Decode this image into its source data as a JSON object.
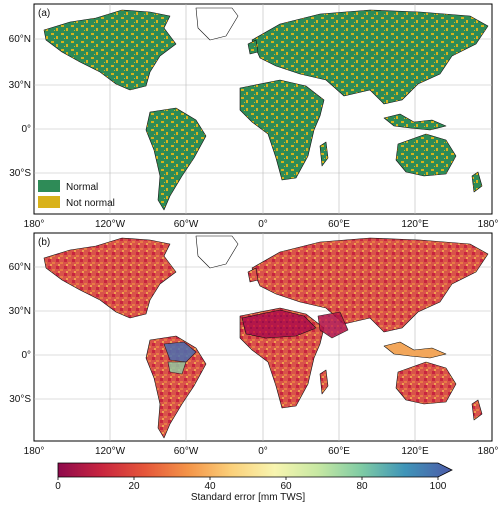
{
  "figure": {
    "panels": [
      {
        "label": "(a)",
        "legend": [
          {
            "label": "Normal",
            "color": "#2e8b57"
          },
          {
            "label": "Not normal",
            "color": "#d9b21a"
          }
        ]
      },
      {
        "label": "(b)"
      }
    ],
    "lat_ticks": [
      "60°N",
      "30°N",
      "0°",
      "30°S"
    ],
    "lon_ticks": [
      "180°",
      "120°W",
      "60°W",
      "0°",
      "60°E",
      "120°E",
      "180°"
    ],
    "colorbar": {
      "label": "Standard error [mm TWS]",
      "ticks": [
        "0",
        "20",
        "40",
        "60",
        "80",
        "100"
      ],
      "min": 0,
      "max": 100,
      "colors": [
        "#8e0a4c",
        "#c8253f",
        "#e5563a",
        "#f49448",
        "#fbd07a",
        "#f8f5b0",
        "#c7e8a3",
        "#7fcba4",
        "#3f95b8",
        "#4c5aa8"
      ]
    }
  }
}
